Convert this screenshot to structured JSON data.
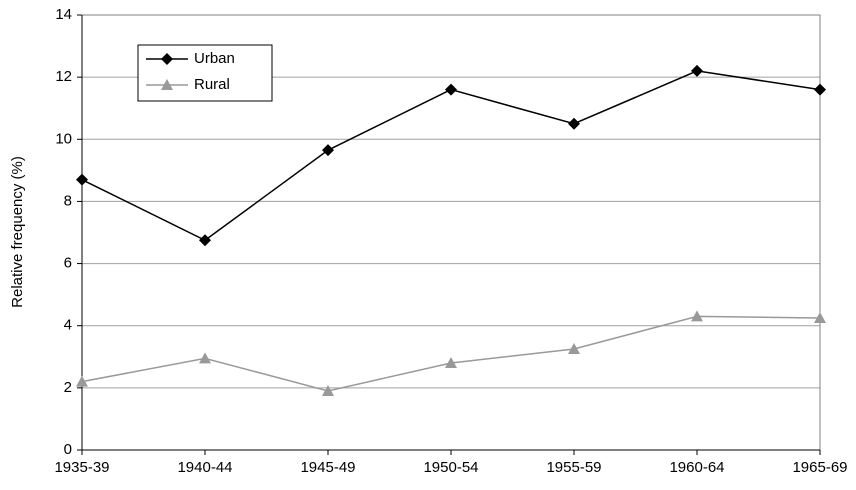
{
  "chart_data": {
    "type": "line",
    "y_label": "Relative frequency (%)",
    "categories": [
      "1935-39",
      "1940-44",
      "1945-49",
      "1950-54",
      "1955-59",
      "1960-64",
      "1965-69"
    ],
    "series": [
      {
        "name": "Urban",
        "color": "#000000",
        "marker": "diamond",
        "values": [
          8.7,
          6.75,
          9.65,
          11.6,
          10.5,
          12.2,
          11.6
        ]
      },
      {
        "name": "Rural",
        "color": "#999999",
        "marker": "triangle",
        "values": [
          2.2,
          2.95,
          1.9,
          2.8,
          3.25,
          4.3,
          4.25
        ]
      }
    ],
    "ylim": [
      0,
      14
    ],
    "yticks": [
      0,
      2,
      4,
      6,
      8,
      10,
      12,
      14
    ],
    "grid": true,
    "legend": "upper left"
  }
}
